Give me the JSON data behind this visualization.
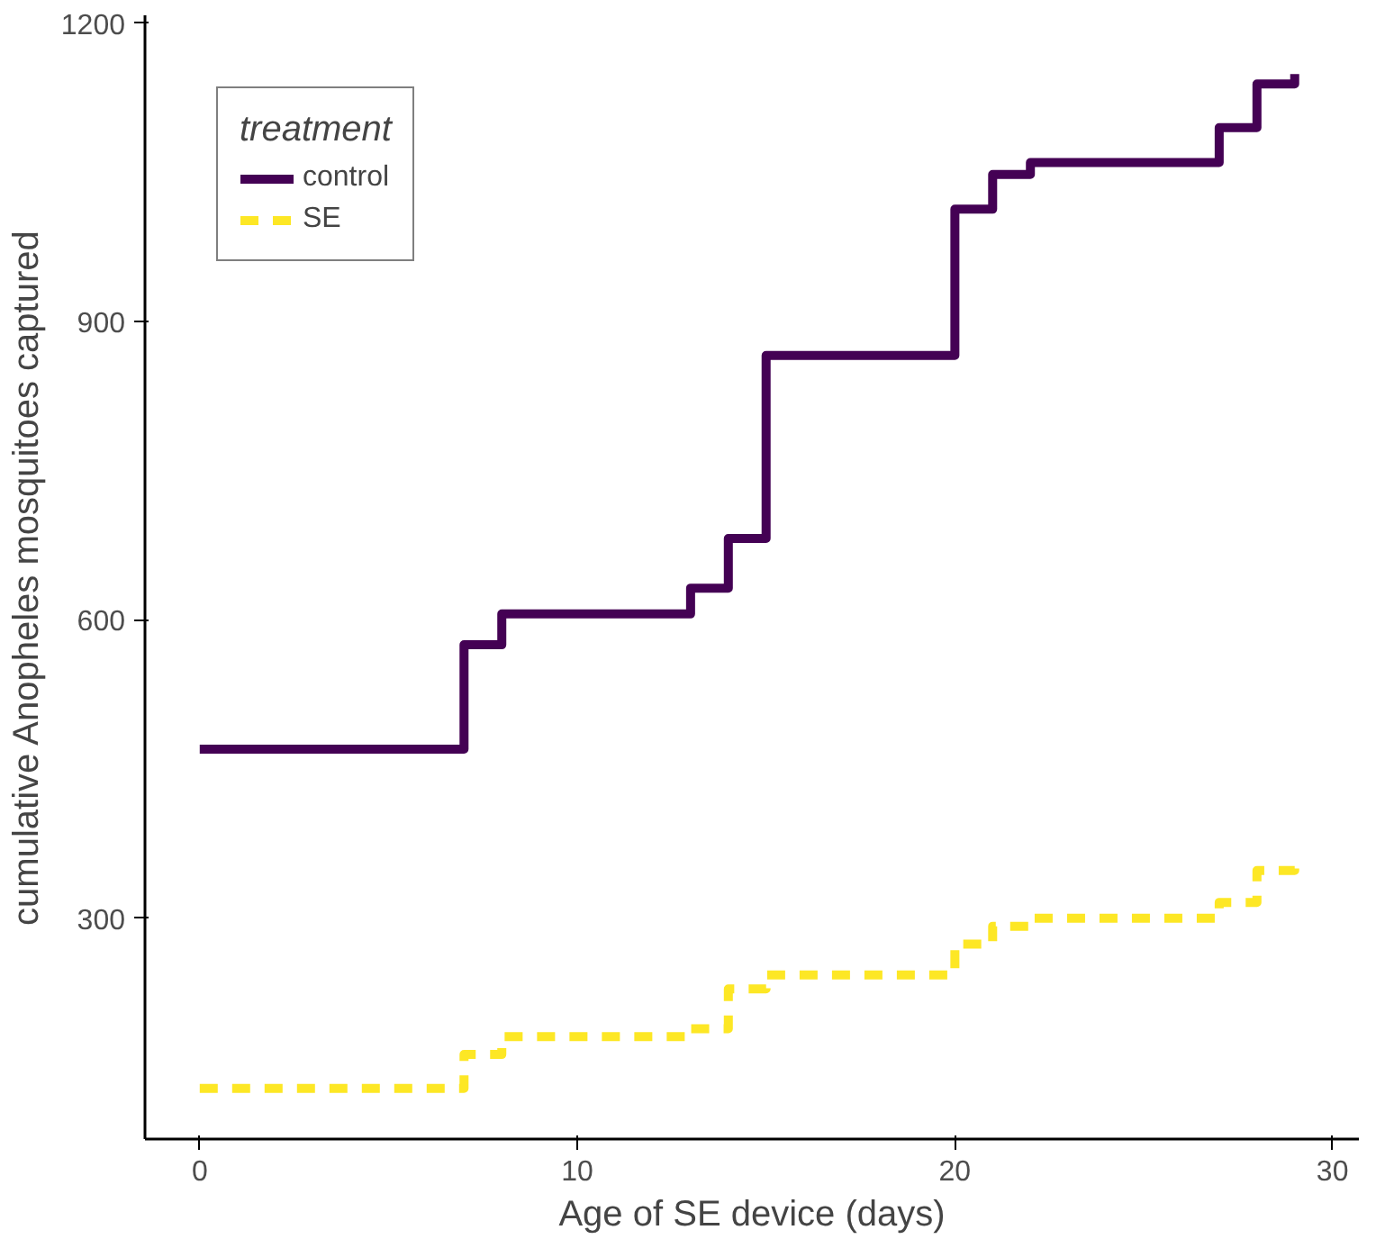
{
  "chart_data": {
    "type": "step",
    "xlabel": "Age of SE device (days)",
    "ylabel": "cumulative Anopheles mosquitoes captured",
    "legend_title": "treatment",
    "x": [
      0,
      7,
      8,
      13,
      14,
      15,
      20,
      21,
      22,
      27,
      28,
      29
    ],
    "series": [
      {
        "name": "control",
        "color": "#440154",
        "line_style": "solid",
        "values": [
          470,
          575,
          606,
          632,
          682,
          866,
          1013,
          1048,
          1060,
          1095,
          1139,
          1149
        ]
      },
      {
        "name": "SE",
        "color": "#fde725",
        "line_style": "dashed",
        "values": [
          129,
          163,
          181,
          189,
          229,
          243,
          274,
          292,
          300,
          316,
          348,
          352
        ]
      }
    ],
    "xlim": [
      -1.45,
      30.7
    ],
    "ylim": [
      78,
      1208
    ],
    "xticks": [
      0,
      10,
      20,
      30
    ],
    "yticks": [
      300,
      600,
      900,
      1200
    ],
    "grid": false,
    "legend": "top left"
  }
}
